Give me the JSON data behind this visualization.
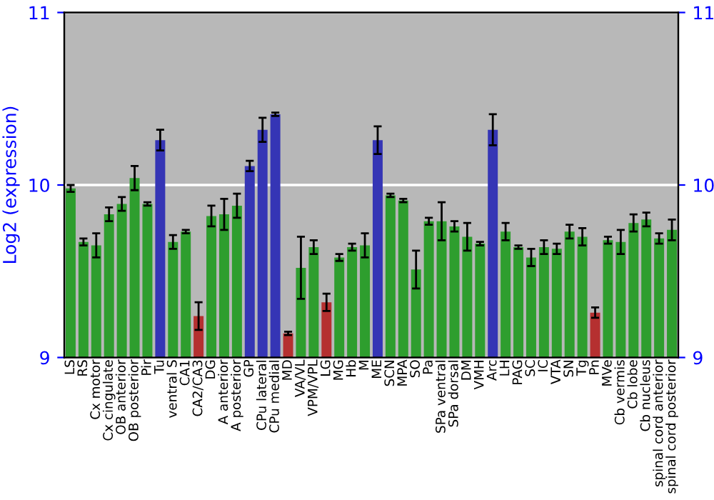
{
  "chart_data": {
    "type": "bar",
    "ylabel": "Log2 (expression)",
    "categories": [
      "LS",
      "RS",
      "Cx motor",
      "Cx cingulate",
      "OB anterior",
      "OB posterior",
      "Pir",
      "Tu",
      "ventral S",
      "CA1",
      "CA2/CA3",
      "DG",
      "A anterior",
      "A posterior",
      "GP",
      "CPu lateral",
      "CPu medial",
      "MD",
      "VA/VL",
      "VPM/VPL",
      "LG",
      "MG",
      "Hb",
      "M",
      "ME",
      "SCN",
      "MPA",
      "SO",
      "Pa",
      "SPa ventral",
      "SPa dorsal",
      "DM",
      "VMH",
      "Arc",
      "LH",
      "PAG",
      "SC",
      "IC",
      "VTA",
      "SN",
      "Tg",
      "Pn",
      "MVe",
      "Cb vermis",
      "Cb lobe",
      "Cb nucleus",
      "spinal cord anterior",
      "spinal cord posterior"
    ],
    "values": [
      9.98,
      9.67,
      9.65,
      9.83,
      9.89,
      10.04,
      9.89,
      10.26,
      9.67,
      9.73,
      9.24,
      9.82,
      9.83,
      9.88,
      10.11,
      10.32,
      10.41,
      9.14,
      9.52,
      9.64,
      9.32,
      9.58,
      9.64,
      9.65,
      10.26,
      9.94,
      9.91,
      9.51,
      9.79,
      9.79,
      9.76,
      9.7,
      9.66,
      10.32,
      9.73,
      9.64,
      9.58,
      9.64,
      9.63,
      9.73,
      9.7,
      9.26,
      9.68,
      9.67,
      9.78,
      9.8,
      9.69,
      9.74
    ],
    "errors": [
      0.02,
      0.02,
      0.07,
      0.04,
      0.04,
      0.07,
      0.01,
      0.06,
      0.04,
      0.01,
      0.08,
      0.06,
      0.09,
      0.07,
      0.03,
      0.07,
      0.01,
      0.01,
      0.18,
      0.04,
      0.05,
      0.02,
      0.02,
      0.07,
      0.08,
      0.01,
      0.01,
      0.11,
      0.02,
      0.11,
      0.03,
      0.08,
      0.01,
      0.09,
      0.05,
      0.01,
      0.05,
      0.04,
      0.03,
      0.04,
      0.05,
      0.03,
      0.02,
      0.07,
      0.05,
      0.04,
      0.03,
      0.06
    ],
    "colors": [
      "#2e9e2e",
      "#2e9e2e",
      "#2e9e2e",
      "#2e9e2e",
      "#2e9e2e",
      "#2e9e2e",
      "#2e9e2e",
      "#3535b5",
      "#2e9e2e",
      "#2e9e2e",
      "#b53030",
      "#2e9e2e",
      "#2e9e2e",
      "#2e9e2e",
      "#3535b5",
      "#3535b5",
      "#3535b5",
      "#b53030",
      "#2e9e2e",
      "#2e9e2e",
      "#b53030",
      "#2e9e2e",
      "#2e9e2e",
      "#2e9e2e",
      "#3535b5",
      "#2e9e2e",
      "#2e9e2e",
      "#2e9e2e",
      "#2e9e2e",
      "#2e9e2e",
      "#2e9e2e",
      "#2e9e2e",
      "#2e9e2e",
      "#3535b5",
      "#2e9e2e",
      "#2e9e2e",
      "#2e9e2e",
      "#2e9e2e",
      "#2e9e2e",
      "#2e9e2e",
      "#2e9e2e",
      "#b53030",
      "#2e9e2e",
      "#2e9e2e",
      "#2e9e2e",
      "#2e9e2e",
      "#2e9e2e",
      "#2e9e2e"
    ],
    "ylim": [
      9,
      11
    ],
    "yticks": [
      9,
      10,
      11
    ],
    "y2lim": [
      9,
      11
    ],
    "y2ticks": [
      9,
      10,
      11
    ],
    "grid": "y"
  }
}
